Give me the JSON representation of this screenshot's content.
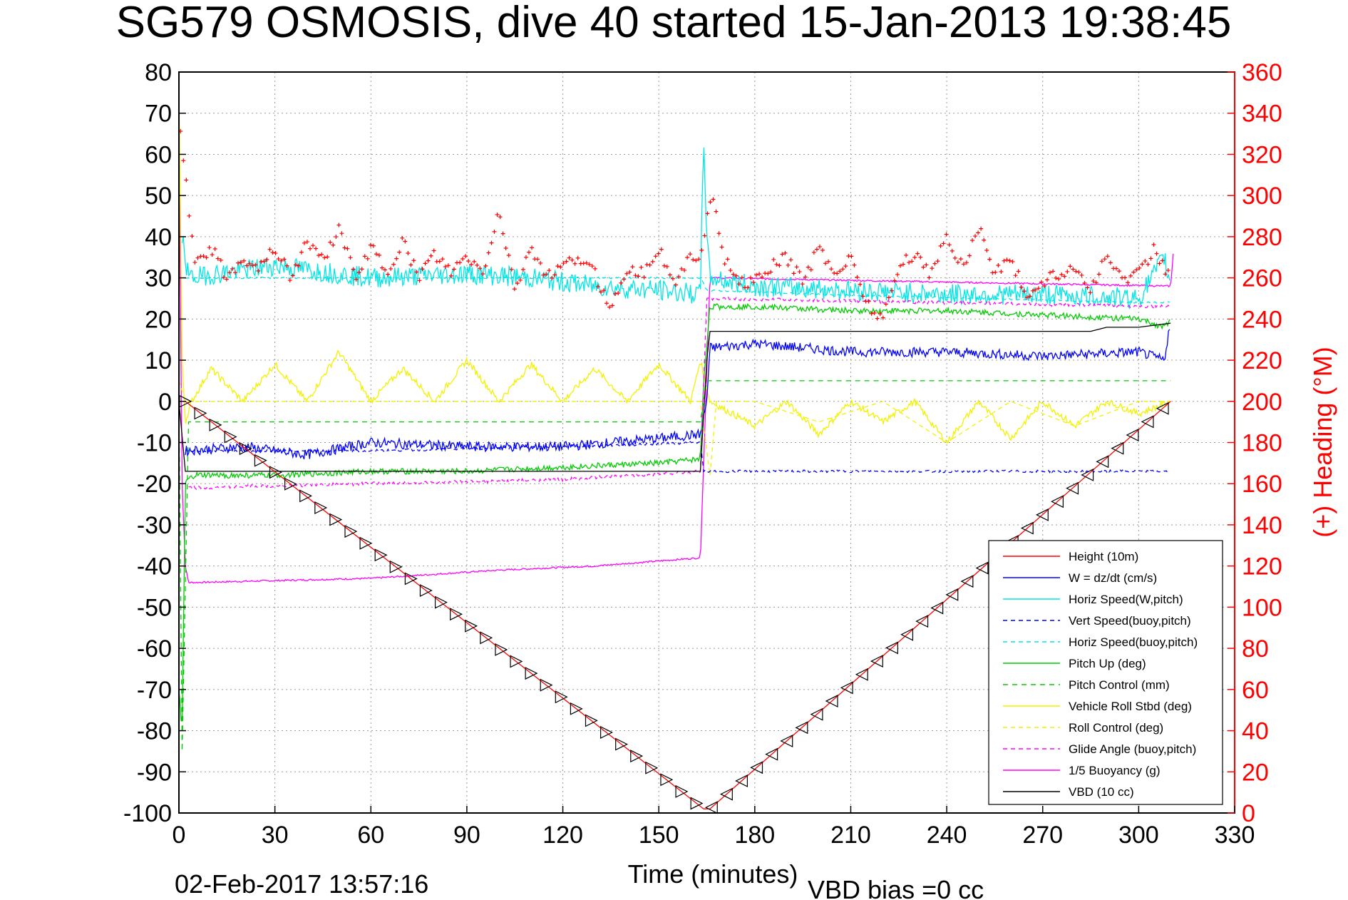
{
  "chart_data": {
    "type": "line",
    "title": "SG579 OSMOSIS, dive 40 started 15-Jan-2013 19:38:45",
    "xlabel": "Time (minutes)",
    "ylabel": "",
    "y2label": "(+) Heading (°M)",
    "footer_left": "02-Feb-2017 13:57:16",
    "footer_right": "VBD bias =0 cc",
    "xlim": [
      0,
      330
    ],
    "ylim": [
      -100,
      80
    ],
    "y2lim": [
      0,
      360
    ],
    "grid": true,
    "legend_position": "bottom-right",
    "x_ticks": [
      "0",
      "30",
      "60",
      "90",
      "120",
      "150",
      "180",
      "210",
      "240",
      "270",
      "300",
      "330"
    ],
    "y_ticks": [
      "80",
      "70",
      "60",
      "50",
      "40",
      "30",
      "20",
      "10",
      "0",
      "-10",
      "-20",
      "-30",
      "-40",
      "-50",
      "-60",
      "-70",
      "-80",
      "-90",
      "-100"
    ],
    "y2_ticks": [
      "360",
      "340",
      "320",
      "300",
      "280",
      "260",
      "240",
      "220",
      "200",
      "180",
      "160",
      "140",
      "120",
      "100",
      "80",
      "60",
      "40",
      "20",
      "0"
    ],
    "colors": {
      "height": "#ff0000",
      "w": "#0000ff",
      "cyan": "#00e6e6",
      "green": "#00cc00",
      "yellow": "#f2f200",
      "magenta": "#ff00ff",
      "vbd": "#000000",
      "heading": "#ff0000"
    },
    "series": [
      {
        "name": "Height (10m)",
        "color": "#ff0000",
        "dash": "",
        "x": [
          0,
          2,
          164,
          166,
          310
        ],
        "y": [
          0,
          0,
          -99,
          -99,
          0
        ],
        "markers": true
      },
      {
        "name": "W = dz/dt (cm/s)",
        "color": "#0000ff",
        "dash": "",
        "x": [
          2,
          20,
          40,
          60,
          90,
          120,
          150,
          163,
          165,
          166,
          180,
          210,
          240,
          270,
          300,
          308,
          310
        ],
        "y": [
          -12,
          -11,
          -13,
          -10,
          -11,
          -11,
          -9,
          -8,
          0,
          13,
          14,
          12,
          12,
          11,
          12,
          10,
          20
        ],
        "noise": 1.2
      },
      {
        "name": "Horiz Speed(W,pitch)",
        "color": "#00e6e6",
        "dash": "",
        "x": [
          1,
          3,
          30,
          60,
          90,
          110,
          130,
          150,
          163,
          164,
          165,
          166,
          180,
          210,
          240,
          270,
          300,
          308,
          310
        ],
        "y": [
          40,
          30,
          33,
          30,
          31,
          30,
          28,
          27,
          26,
          66,
          40,
          30,
          28,
          27,
          26,
          26,
          25,
          35,
          28
        ],
        "noise": 2.5
      },
      {
        "name": "Vert Speed(buoy,pitch)",
        "color": "#0000ff",
        "dash": "6,5",
        "x": [
          2,
          60,
          120,
          163,
          164,
          165,
          310
        ],
        "y": [
          -12,
          -12,
          -11,
          -10,
          -17,
          -17,
          -17
        ],
        "noise": 0.3
      },
      {
        "name": "Horiz Speed(buoy,pitch)",
        "color": "#00e6e6",
        "dash": "6,5",
        "x": [
          2,
          60,
          120,
          163,
          165,
          200,
          250,
          300,
          310
        ],
        "y": [
          30,
          30,
          30,
          30,
          27,
          26,
          25,
          24,
          24
        ],
        "noise": 0.2
      },
      {
        "name": "Pitch Up (deg)",
        "color": "#00cc00",
        "dash": "",
        "x": [
          0,
          1,
          2,
          3,
          5,
          30,
          60,
          90,
          120,
          150,
          163,
          164,
          166,
          180,
          210,
          240,
          270,
          300,
          308,
          310
        ],
        "y": [
          -70,
          -80,
          -20,
          -19,
          -18,
          -18,
          -17,
          -17,
          -16,
          -15,
          -14,
          5,
          23,
          23,
          22,
          22,
          21,
          20,
          18,
          20
        ],
        "noise": 0.7
      },
      {
        "name": "Pitch Control (mm)",
        "color": "#00cc00",
        "dash": "7,6",
        "x": [
          0,
          1,
          3,
          10,
          163,
          165,
          310
        ],
        "y": [
          0,
          -85,
          -5,
          -5,
          -5,
          5,
          5
        ],
        "noise": 0
      },
      {
        "name": "Vehicle Roll Stbd (deg)",
        "color": "#f2f200",
        "dash": "",
        "x": [
          0,
          1,
          2,
          4,
          10,
          20,
          30,
          40,
          50,
          60,
          70,
          80,
          90,
          100,
          110,
          120,
          130,
          140,
          150,
          160,
          163,
          166,
          180,
          190,
          200,
          210,
          220,
          230,
          240,
          250,
          260,
          270,
          280,
          290,
          300,
          310
        ],
        "y": [
          75,
          10,
          -5,
          0,
          8,
          0,
          9,
          0,
          12,
          0,
          8,
          0,
          10,
          0,
          9,
          0,
          8,
          0,
          9,
          0,
          10,
          0,
          -6,
          0,
          -8,
          0,
          -5,
          0,
          -10,
          0,
          -9,
          0,
          -6,
          0,
          -3,
          0
        ],
        "noise": 0.8
      },
      {
        "name": "Roll Control (deg)",
        "color": "#f2f200",
        "dash": "6,5",
        "x": [
          0,
          2,
          20,
          40,
          60,
          80,
          100,
          120,
          140,
          160,
          163,
          166,
          168,
          180,
          200,
          220,
          240,
          260,
          280,
          300,
          310
        ],
        "y": [
          5,
          0,
          0,
          0,
          0,
          0,
          0,
          0,
          0,
          0,
          0,
          -18,
          0,
          0,
          -5,
          0,
          -10,
          0,
          -6,
          0,
          0
        ],
        "noise": 0
      },
      {
        "name": "Glide Angle (buoy,pitch)",
        "color": "#ff00ff",
        "dash": "6,5",
        "x": [
          3,
          60,
          120,
          163,
          165,
          310
        ],
        "y": [
          -21,
          -20,
          -19,
          -17,
          25,
          23
        ],
        "noise": 0.4
      },
      {
        "name": "1/5 Buoyancy (g)",
        "color": "#ff00ff",
        "dash": "",
        "x": [
          0,
          1,
          2,
          3,
          5,
          60,
          100,
          130,
          163,
          166,
          310,
          311
        ],
        "y": [
          65,
          -20,
          -40,
          -44,
          -44,
          -43,
          -41,
          -40,
          -38,
          30,
          28,
          38
        ],
        "noise": 0.2
      },
      {
        "name": "VBD (10 cc)",
        "color": "#000000",
        "dash": "",
        "x": [
          0,
          2,
          163,
          165,
          166,
          285,
          290,
          300,
          310
        ],
        "y": [
          0,
          -17,
          -17,
          10,
          17,
          17,
          18,
          18,
          19
        ],
        "noise": 0
      }
    ],
    "heading": {
      "name": "Heading",
      "color": "#ff0000",
      "marker": "+",
      "x": [
        0,
        2,
        5,
        10,
        15,
        20,
        25,
        30,
        35,
        40,
        45,
        50,
        55,
        60,
        65,
        70,
        75,
        80,
        85,
        90,
        95,
        100,
        105,
        110,
        115,
        120,
        125,
        130,
        135,
        140,
        145,
        150,
        155,
        160,
        163,
        165,
        167,
        170,
        175,
        180,
        185,
        190,
        195,
        200,
        205,
        210,
        215,
        220,
        225,
        230,
        235,
        240,
        245,
        250,
        255,
        260,
        265,
        270,
        275,
        280,
        285,
        290,
        295,
        300,
        305,
        310
      ],
      "y": [
        340,
        310,
        265,
        275,
        260,
        270,
        265,
        275,
        260,
        278,
        268,
        285,
        260,
        275,
        262,
        278,
        260,
        272,
        262,
        270,
        262,
        292,
        255,
        275,
        260,
        265,
        270,
        262,
        245,
        265,
        262,
        275,
        255,
        272,
        270,
        290,
        300,
        270,
        258,
        258,
        265,
        270,
        258,
        275,
        262,
        270,
        248,
        240,
        265,
        272,
        262,
        280,
        265,
        285,
        262,
        270,
        250,
        258,
        262,
        265,
        255,
        270,
        260,
        262,
        275,
        258
      ],
      "noise": 3
    },
    "legend": [
      "Height (10m)",
      "W = dz/dt (cm/s)",
      "Horiz Speed(W,pitch)",
      "Vert Speed(buoy,pitch)",
      "Horiz Speed(buoy,pitch)",
      "Pitch Up (deg)",
      "Pitch Control (mm)",
      "Vehicle Roll Stbd (deg)",
      "Roll Control (deg)",
      "Glide Angle (buoy,pitch)",
      "1/5 Buoyancy (g)",
      "VBD (10 cc)"
    ]
  }
}
